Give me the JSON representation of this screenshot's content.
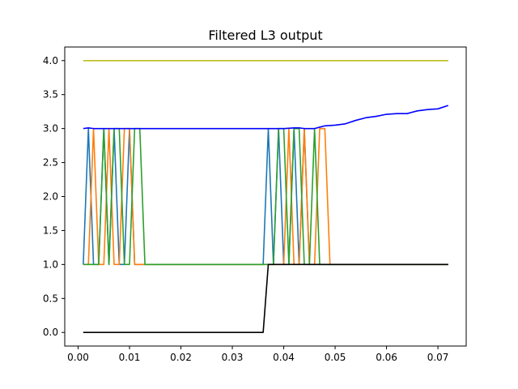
{
  "chart_data": {
    "type": "line",
    "title": "Filtered L3 output",
    "xlabel": "",
    "ylabel": "",
    "xlim": [
      -0.0026,
      0.0755
    ],
    "ylim": [
      -0.2,
      4.2
    ],
    "x_ticks": [
      0.0,
      0.01,
      0.02,
      0.03,
      0.04,
      0.05,
      0.06,
      0.07
    ],
    "x_tick_labels": [
      "0.00",
      "0.01",
      "0.02",
      "0.03",
      "0.04",
      "0.05",
      "0.06",
      "0.07"
    ],
    "y_ticks": [
      0.0,
      0.5,
      1.0,
      1.5,
      2.0,
      2.5,
      3.0,
      3.5,
      4.0
    ],
    "y_tick_labels": [
      "0.0",
      "0.5",
      "1.0",
      "1.5",
      "2.0",
      "2.5",
      "3.0",
      "3.5",
      "4.0"
    ],
    "grid": false,
    "series": [
      {
        "color": "#1f77b4",
        "x": [
          0.001,
          0.002,
          0.003,
          0.004,
          0.005,
          0.006,
          0.007,
          0.008,
          0.009,
          0.01,
          0.011,
          0.012,
          0.036,
          0.037,
          0.038,
          0.039,
          0.04,
          0.041,
          0.042,
          0.043,
          0.044,
          0.045,
          0.046,
          0.047,
          0.048,
          0.072
        ],
        "y": [
          1,
          3,
          1,
          1,
          3,
          1,
          3,
          1,
          1,
          3,
          1,
          1,
          1,
          3,
          1,
          3,
          1,
          1,
          3,
          1,
          3,
          1,
          1,
          1,
          1,
          1
        ]
      },
      {
        "color": "#ff7f0e",
        "x": [
          0.001,
          0.002,
          0.003,
          0.004,
          0.005,
          0.006,
          0.007,
          0.008,
          0.009,
          0.01,
          0.011,
          0.012,
          0.038,
          0.039,
          0.04,
          0.041,
          0.042,
          0.043,
          0.044,
          0.045,
          0.046,
          0.047,
          0.048,
          0.049,
          0.05,
          0.072
        ],
        "y": [
          1,
          1,
          3,
          1,
          1,
          3,
          1,
          1,
          3,
          3,
          1,
          1,
          1,
          1,
          1,
          3,
          1,
          1,
          3,
          1,
          1,
          3,
          3,
          1,
          1,
          1
        ]
      },
      {
        "color": "#2ca02c",
        "x": [
          0.001,
          0.004,
          0.005,
          0.006,
          0.007,
          0.008,
          0.009,
          0.01,
          0.011,
          0.012,
          0.013,
          0.014,
          0.038,
          0.039,
          0.04,
          0.041,
          0.042,
          0.043,
          0.044,
          0.045,
          0.046,
          0.047,
          0.072
        ],
        "y": [
          1,
          1,
          3,
          1,
          3,
          3,
          1,
          1,
          3,
          3,
          1,
          1,
          1,
          3,
          3,
          1,
          3,
          3,
          1,
          1,
          3,
          1,
          1
        ]
      },
      {
        "color": "#0000ff",
        "x": [
          0.001,
          0.002,
          0.003,
          0.02,
          0.036,
          0.04,
          0.042,
          0.043,
          0.044,
          0.045,
          0.046,
          0.047,
          0.048,
          0.05,
          0.052,
          0.054,
          0.056,
          0.058,
          0.06,
          0.062,
          0.064,
          0.066,
          0.068,
          0.07,
          0.072
        ],
        "y": [
          3.0,
          3.01,
          3.0,
          3.0,
          3.0,
          3.0,
          3.01,
          3.01,
          3.0,
          3.0,
          3.0,
          3.02,
          3.04,
          3.05,
          3.07,
          3.12,
          3.16,
          3.18,
          3.21,
          3.22,
          3.22,
          3.26,
          3.28,
          3.29,
          3.34
        ]
      },
      {
        "color": "#000000",
        "x": [
          0.001,
          0.036,
          0.037,
          0.072
        ],
        "y": [
          0,
          0,
          1,
          1
        ]
      },
      {
        "color": "#bcbd22",
        "x": [
          0.001,
          0.072
        ],
        "y": [
          4,
          4
        ]
      }
    ]
  }
}
